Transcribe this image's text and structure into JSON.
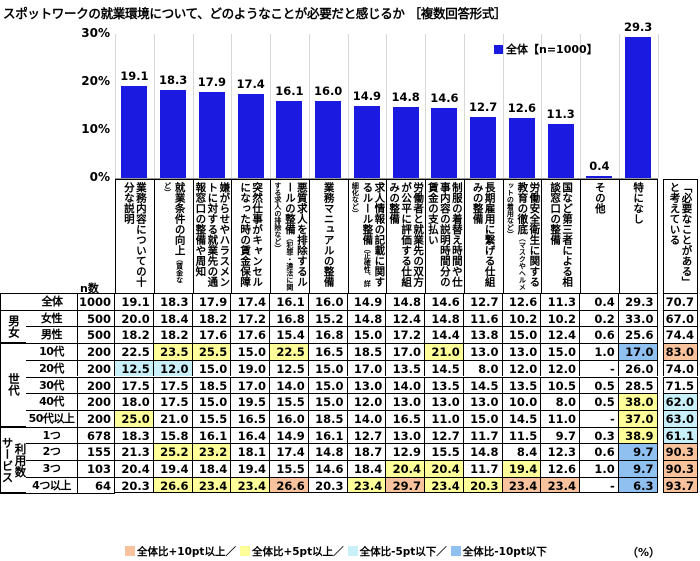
{
  "title": "スポットワークの就業環境について、どのようなことが必要だと感じるか ［複数回答形式］",
  "chart_data": {
    "type": "bar",
    "title": "スポットワークの就業環境について、どのようなことが必要だと感じるか ［複数回答形式］",
    "ylim": [
      0,
      30
    ],
    "yticks": [
      "0%",
      "10%",
      "20%",
      "30%"
    ],
    "grid": true,
    "legend_position": "top-right",
    "series": [
      {
        "name": "全体【n=1000】",
        "color": "#1a1ae0",
        "values": [
          19.1,
          18.3,
          17.9,
          17.4,
          16.1,
          16.0,
          14.9,
          14.8,
          14.6,
          12.7,
          12.6,
          11.3,
          0.4,
          29.3
        ]
      }
    ],
    "value_labels": [
      "19.1",
      "18.3",
      "17.9",
      "17.4",
      "16.1",
      "16.0",
      "14.9",
      "14.8",
      "14.6",
      "12.7",
      "12.6",
      "11.3",
      "0.4",
      "29.3"
    ],
    "categories": [
      "業務内容についての十分な説明",
      "就業条件の向上（賃金など）",
      "嫌がらせやハラスメントに対する就業先の通報窓口の整備や周知",
      "突然仕事がキャンセルになった時の賃金保障",
      "悪質求人を排除するルールの整備（犯罪・違法に関する求人の排除など）",
      "業務マニュアルの整備",
      "求人情報の記載に関するルール整備（正確性、詳細化など）",
      "労働者と就業先の双方が公平に評価する仕組みの整備",
      "制服の着替え時間や仕事内容の説明時間分の賃金の支払い",
      "長期雇用に繋げる仕組みの整備",
      "労働安全衛生に関する教育の徹底（マスクやヘルメットの着用など）",
      "国など第三者による相談窓口の整備",
      "その他",
      "特になし"
    ],
    "extra_column": "「必要なことがある」と考えている"
  },
  "table": {
    "n_label": "n数",
    "groups": [
      {
        "label": "男女",
        "rows": [
          1,
          2
        ]
      },
      {
        "label": "世代",
        "rows": [
          3,
          7
        ]
      },
      {
        "label": "利用数",
        "sub": "サービス",
        "rows": [
          8,
          11
        ]
      }
    ],
    "rows": [
      {
        "label": "全体",
        "n": "1000",
        "values": [
          "19.1",
          "18.3",
          "17.9",
          "17.4",
          "16.1",
          "16.0",
          "14.9",
          "14.8",
          "14.6",
          "12.7",
          "12.6",
          "11.3",
          "0.4",
          "29.3",
          "70.7"
        ],
        "hl": []
      },
      {
        "label": "女性",
        "n": "500",
        "values": [
          "20.0",
          "18.4",
          "18.2",
          "17.2",
          "16.8",
          "15.2",
          "14.8",
          "12.4",
          "14.8",
          "11.6",
          "10.2",
          "10.2",
          "0.2",
          "33.0",
          "67.0"
        ],
        "hl": []
      },
      {
        "label": "男性",
        "n": "500",
        "values": [
          "18.2",
          "18.2",
          "17.6",
          "17.6",
          "15.4",
          "16.8",
          "15.0",
          "17.2",
          "14.4",
          "13.8",
          "15.0",
          "12.4",
          "0.6",
          "25.6",
          "74.4"
        ],
        "hl": []
      },
      {
        "label": "10代",
        "n": "200",
        "values": [
          "22.5",
          "23.5",
          "25.5",
          "15.0",
          "22.5",
          "16.5",
          "18.5",
          "17.0",
          "21.0",
          "13.0",
          "13.0",
          "15.0",
          "1.0",
          "17.0",
          "83.0"
        ],
        "hl": [
          "",
          "y",
          "y",
          "",
          "y",
          "",
          "",
          "",
          "y",
          "",
          "",
          "",
          "",
          "b",
          "o"
        ]
      },
      {
        "label": "20代",
        "n": "200",
        "values": [
          "12.5",
          "12.0",
          "15.0",
          "19.0",
          "12.5",
          "15.0",
          "17.0",
          "13.5",
          "14.5",
          "8.0",
          "12.0",
          "12.0",
          "-",
          "26.0",
          "74.0"
        ],
        "hl": [
          "c",
          "c"
        ]
      },
      {
        "label": "30代",
        "n": "200",
        "values": [
          "17.5",
          "17.5",
          "18.5",
          "17.0",
          "14.0",
          "15.0",
          "13.0",
          "14.0",
          "13.5",
          "14.5",
          "13.5",
          "10.5",
          "0.5",
          "28.5",
          "71.5"
        ],
        "hl": []
      },
      {
        "label": "40代",
        "n": "200",
        "values": [
          "18.0",
          "17.5",
          "15.0",
          "19.5",
          "15.5",
          "15.0",
          "12.0",
          "13.0",
          "13.0",
          "13.0",
          "10.0",
          "8.0",
          "0.5",
          "38.0",
          "62.0"
        ],
        "hl": [
          "",
          "",
          "",
          "",
          "",
          "",
          "",
          "",
          "",
          "",
          "",
          "",
          "",
          "y",
          "c"
        ]
      },
      {
        "label": "50代以上",
        "n": "200",
        "values": [
          "25.0",
          "21.0",
          "15.5",
          "16.5",
          "16.0",
          "18.5",
          "14.0",
          "16.5",
          "11.0",
          "15.0",
          "14.5",
          "11.0",
          "-",
          "37.0",
          "63.0"
        ],
        "hl": [
          "y",
          "",
          "",
          "",
          "",
          "",
          "",
          "",
          "",
          "",
          "",
          "",
          "",
          "y",
          "c"
        ]
      },
      {
        "label": "1つ",
        "n": "678",
        "values": [
          "18.3",
          "15.8",
          "16.1",
          "16.4",
          "14.9",
          "16.1",
          "12.7",
          "13.0",
          "12.7",
          "11.7",
          "11.5",
          "9.7",
          "0.3",
          "38.9",
          "61.1"
        ],
        "hl": [
          "",
          "",
          "",
          "",
          "",
          "",
          "",
          "",
          "",
          "",
          "",
          "",
          "",
          "y",
          "c"
        ]
      },
      {
        "label": "2つ",
        "n": "155",
        "values": [
          "21.3",
          "25.2",
          "23.2",
          "18.1",
          "17.4",
          "14.8",
          "18.7",
          "12.9",
          "15.5",
          "14.8",
          "8.4",
          "12.3",
          "0.6",
          "9.7",
          "90.3"
        ],
        "hl": [
          "",
          "y",
          "y",
          "",
          "",
          "",
          "",
          "",
          "",
          "",
          "",
          "",
          "",
          "b",
          "o"
        ]
      },
      {
        "label": "3つ",
        "n": "103",
        "values": [
          "20.4",
          "19.4",
          "18.4",
          "19.4",
          "15.5",
          "14.6",
          "18.4",
          "20.4",
          "20.4",
          "11.7",
          "19.4",
          "12.6",
          "1.0",
          "9.7",
          "90.3"
        ],
        "hl": [
          "",
          "",
          "",
          "",
          "",
          "",
          "",
          "y",
          "y",
          "",
          "y",
          "",
          "",
          "b",
          "o"
        ]
      },
      {
        "label": "4つ以上",
        "n": "64",
        "values": [
          "20.3",
          "26.6",
          "23.4",
          "23.4",
          "26.6",
          "20.3",
          "23.4",
          "29.7",
          "23.4",
          "20.3",
          "23.4",
          "23.4",
          "-",
          "6.3",
          "93.7"
        ],
        "hl": [
          "",
          "y",
          "y",
          "y",
          "o",
          "",
          "y",
          "o",
          "y",
          "y",
          "o",
          "o",
          "",
          "b",
          "o"
        ]
      }
    ]
  },
  "highlight_colors": {
    "o": "#f8c39c",
    "y": "#ffff99",
    "c": "#c9f0f8",
    "b": "#8fc0f0"
  },
  "footer_legend": [
    {
      "key": "o",
      "label": "全体比+10pt以上／"
    },
    {
      "key": "y",
      "label": "全体比+5pt以上／"
    },
    {
      "key": "c",
      "label": "全体比-5pt以下／"
    },
    {
      "key": "b",
      "label": "全体比-10pt以下"
    }
  ],
  "unit_note": "（%）"
}
